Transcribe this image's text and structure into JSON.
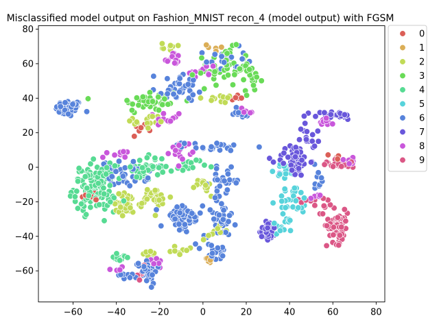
{
  "chart_data": {
    "type": "scatter",
    "title": "Misclassified model output on Fashion_MNIST recon_4 (model output) with FGSM",
    "xlabel": "",
    "ylabel": "",
    "xlim": [
      -76,
      84
    ],
    "ylim": [
      -78,
      82
    ],
    "xticks": [
      -60,
      -40,
      -20,
      0,
      20,
      40,
      60,
      80
    ],
    "yticks": [
      -60,
      -40,
      -20,
      0,
      20,
      40,
      60,
      80
    ],
    "grid": false,
    "legend": {
      "placement": "outside-top-right",
      "entries": [
        "0",
        "1",
        "2",
        "3",
        "4",
        "5",
        "6",
        "7",
        "8",
        "9"
      ]
    },
    "colors": [
      "#db5f57",
      "#dbae57",
      "#c1db57",
      "#69db57",
      "#57db93",
      "#57d3db",
      "#5783db",
      "#6957db",
      "#c957db",
      "#db5786"
    ],
    "marker": "circle with white edge",
    "clusters": [
      {
        "label": "6",
        "center": [
          -62,
          34
        ],
        "spread": [
          5,
          4
        ],
        "count": 60
      },
      {
        "label": "2",
        "center": [
          -16,
          70
        ],
        "spread": [
          6,
          2
        ],
        "count": 8
      },
      {
        "label": "8",
        "center": [
          -14,
          63
        ],
        "spread": [
          3,
          4
        ],
        "count": 12
      },
      {
        "label": "6",
        "center": [
          -12,
          50
        ],
        "spread": [
          7,
          4
        ],
        "count": 15
      },
      {
        "label": "3",
        "center": [
          -24,
          38
        ],
        "spread": [
          12,
          6
        ],
        "count": 40
      },
      {
        "label": "6",
        "center": [
          -10,
          44
        ],
        "spread": [
          10,
          5
        ],
        "count": 25
      },
      {
        "label": "2",
        "center": [
          -26,
          26
        ],
        "spread": [
          8,
          4
        ],
        "count": 15
      },
      {
        "label": "0",
        "center": [
          -28,
          23
        ],
        "spread": [
          4,
          2
        ],
        "count": 6
      },
      {
        "label": "8",
        "center": [
          -16,
          28
        ],
        "spread": [
          5,
          4
        ],
        "count": 12
      },
      {
        "label": "3",
        "center": [
          10,
          58
        ],
        "spread": [
          10,
          9
        ],
        "count": 55
      },
      {
        "label": "6",
        "center": [
          10,
          62
        ],
        "spread": [
          8,
          6
        ],
        "count": 22
      },
      {
        "label": "8",
        "center": [
          0,
          55
        ],
        "spread": [
          5,
          6
        ],
        "count": 10
      },
      {
        "label": "1",
        "center": [
          8,
          70
        ],
        "spread": [
          5,
          3
        ],
        "count": 6
      },
      {
        "label": "2",
        "center": [
          8,
          40
        ],
        "spread": [
          6,
          4
        ],
        "count": 10
      },
      {
        "label": "3",
        "center": [
          22,
          50
        ],
        "spread": [
          4,
          6
        ],
        "count": 15
      },
      {
        "label": "6",
        "center": [
          18,
          32
        ],
        "spread": [
          5,
          3
        ],
        "count": 10
      },
      {
        "label": "8",
        "center": [
          20,
          32
        ],
        "spread": [
          4,
          2
        ],
        "count": 6
      },
      {
        "label": "0",
        "center": [
          15,
          40
        ],
        "spread": [
          3,
          2
        ],
        "count": 5
      },
      {
        "label": "4",
        "center": [
          -50,
          -12
        ],
        "spread": [
          8,
          11
        ],
        "count": 130
      },
      {
        "label": "2",
        "center": [
          -36,
          -22
        ],
        "spread": [
          7,
          6
        ],
        "count": 30
      },
      {
        "label": "2",
        "center": [
          -22,
          -18
        ],
        "spread": [
          6,
          6
        ],
        "count": 30
      },
      {
        "label": "6",
        "center": [
          -36,
          -4
        ],
        "spread": [
          9,
          6
        ],
        "count": 40
      },
      {
        "label": "8",
        "center": [
          -40,
          8
        ],
        "spread": [
          5,
          2
        ],
        "count": 10
      },
      {
        "label": "4",
        "center": [
          -26,
          0
        ],
        "spread": [
          8,
          6
        ],
        "count": 40
      },
      {
        "label": "0",
        "center": [
          -52,
          -17
        ],
        "spread": [
          3,
          3
        ],
        "count": 8
      },
      {
        "label": "8",
        "center": [
          -10,
          10
        ],
        "spread": [
          4,
          4
        ],
        "count": 15
      },
      {
        "label": "6",
        "center": [
          5,
          12
        ],
        "spread": [
          12,
          2
        ],
        "count": 22
      },
      {
        "label": "4",
        "center": [
          -8,
          0
        ],
        "spread": [
          8,
          4
        ],
        "count": 15
      },
      {
        "label": "6",
        "center": [
          -10,
          -30
        ],
        "spread": [
          8,
          8
        ],
        "count": 50
      },
      {
        "label": "6",
        "center": [
          8,
          -28
        ],
        "spread": [
          6,
          10
        ],
        "count": 35
      },
      {
        "label": "6",
        "center": [
          10,
          -8
        ],
        "spread": [
          6,
          6
        ],
        "count": 25
      },
      {
        "label": "2",
        "center": [
          5,
          -38
        ],
        "spread": [
          5,
          3
        ],
        "count": 10
      },
      {
        "label": "2",
        "center": [
          0,
          -12
        ],
        "spread": [
          5,
          5
        ],
        "count": 15
      },
      {
        "label": "2",
        "center": [
          -10,
          -48
        ],
        "spread": [
          4,
          3
        ],
        "count": 8
      },
      {
        "label": "6",
        "center": [
          6,
          -50
        ],
        "spread": [
          5,
          5
        ],
        "count": 20
      },
      {
        "label": "1",
        "center": [
          2,
          -53
        ],
        "spread": [
          4,
          2
        ],
        "count": 5
      },
      {
        "label": "6",
        "center": [
          -26,
          -60
        ],
        "spread": [
          4,
          6
        ],
        "count": 40
      },
      {
        "label": "4",
        "center": [
          -38,
          -52
        ],
        "spread": [
          3,
          3
        ],
        "count": 12
      },
      {
        "label": "8",
        "center": [
          -40,
          -58
        ],
        "spread": [
          2,
          2
        ],
        "count": 5
      },
      {
        "label": "6",
        "center": [
          -36,
          -62
        ],
        "spread": [
          3,
          3
        ],
        "count": 8
      },
      {
        "label": "9",
        "center": [
          -28,
          -60
        ],
        "spread": [
          3,
          4
        ],
        "count": 8
      },
      {
        "label": "2",
        "center": [
          -24,
          -50
        ],
        "spread": [
          3,
          2
        ],
        "count": 6
      },
      {
        "label": "8",
        "center": [
          -20,
          -56
        ],
        "spread": [
          3,
          3
        ],
        "count": 6
      },
      {
        "label": "7",
        "center": [
          42,
          4
        ],
        "spread": [
          6,
          8
        ],
        "count": 55
      },
      {
        "label": "7",
        "center": [
          60,
          30
        ],
        "spread": [
          8,
          2
        ],
        "count": 25
      },
      {
        "label": "7",
        "center": [
          50,
          18
        ],
        "spread": [
          4,
          6
        ],
        "count": 15
      },
      {
        "label": "8",
        "center": [
          56,
          26
        ],
        "spread": [
          5,
          3
        ],
        "count": 10
      },
      {
        "label": "9",
        "center": [
          64,
          2
        ],
        "spread": [
          8,
          2
        ],
        "count": 30
      },
      {
        "label": "8",
        "center": [
          68,
          4
        ],
        "spread": [
          4,
          2
        ],
        "count": 10
      },
      {
        "label": "5",
        "center": [
          38,
          -2
        ],
        "spread": [
          4,
          4
        ],
        "count": 15
      },
      {
        "label": "5",
        "center": [
          42,
          -20
        ],
        "spread": [
          6,
          8
        ],
        "count": 30
      },
      {
        "label": "5",
        "center": [
          36,
          -34
        ],
        "spread": [
          6,
          4
        ],
        "count": 15
      },
      {
        "label": "7",
        "center": [
          30,
          -36
        ],
        "spread": [
          3,
          5
        ],
        "count": 35
      },
      {
        "label": "9",
        "center": [
          62,
          -34
        ],
        "spread": [
          4,
          8
        ],
        "count": 65
      },
      {
        "label": "9",
        "center": [
          56,
          -22
        ],
        "spread": [
          4,
          4
        ],
        "count": 10
      },
      {
        "label": "9",
        "center": [
          44,
          -20
        ],
        "spread": [
          3,
          2
        ],
        "count": 5
      },
      {
        "label": "6",
        "center": [
          54,
          -6
        ],
        "spread": [
          2,
          8
        ],
        "count": 10
      },
      {
        "label": "8",
        "center": [
          52,
          -16
        ],
        "spread": [
          3,
          2
        ],
        "count": 6
      },
      {
        "label": "0",
        "center": [
          62,
          6
        ],
        "spread": [
          3,
          2
        ],
        "count": 5
      }
    ]
  }
}
